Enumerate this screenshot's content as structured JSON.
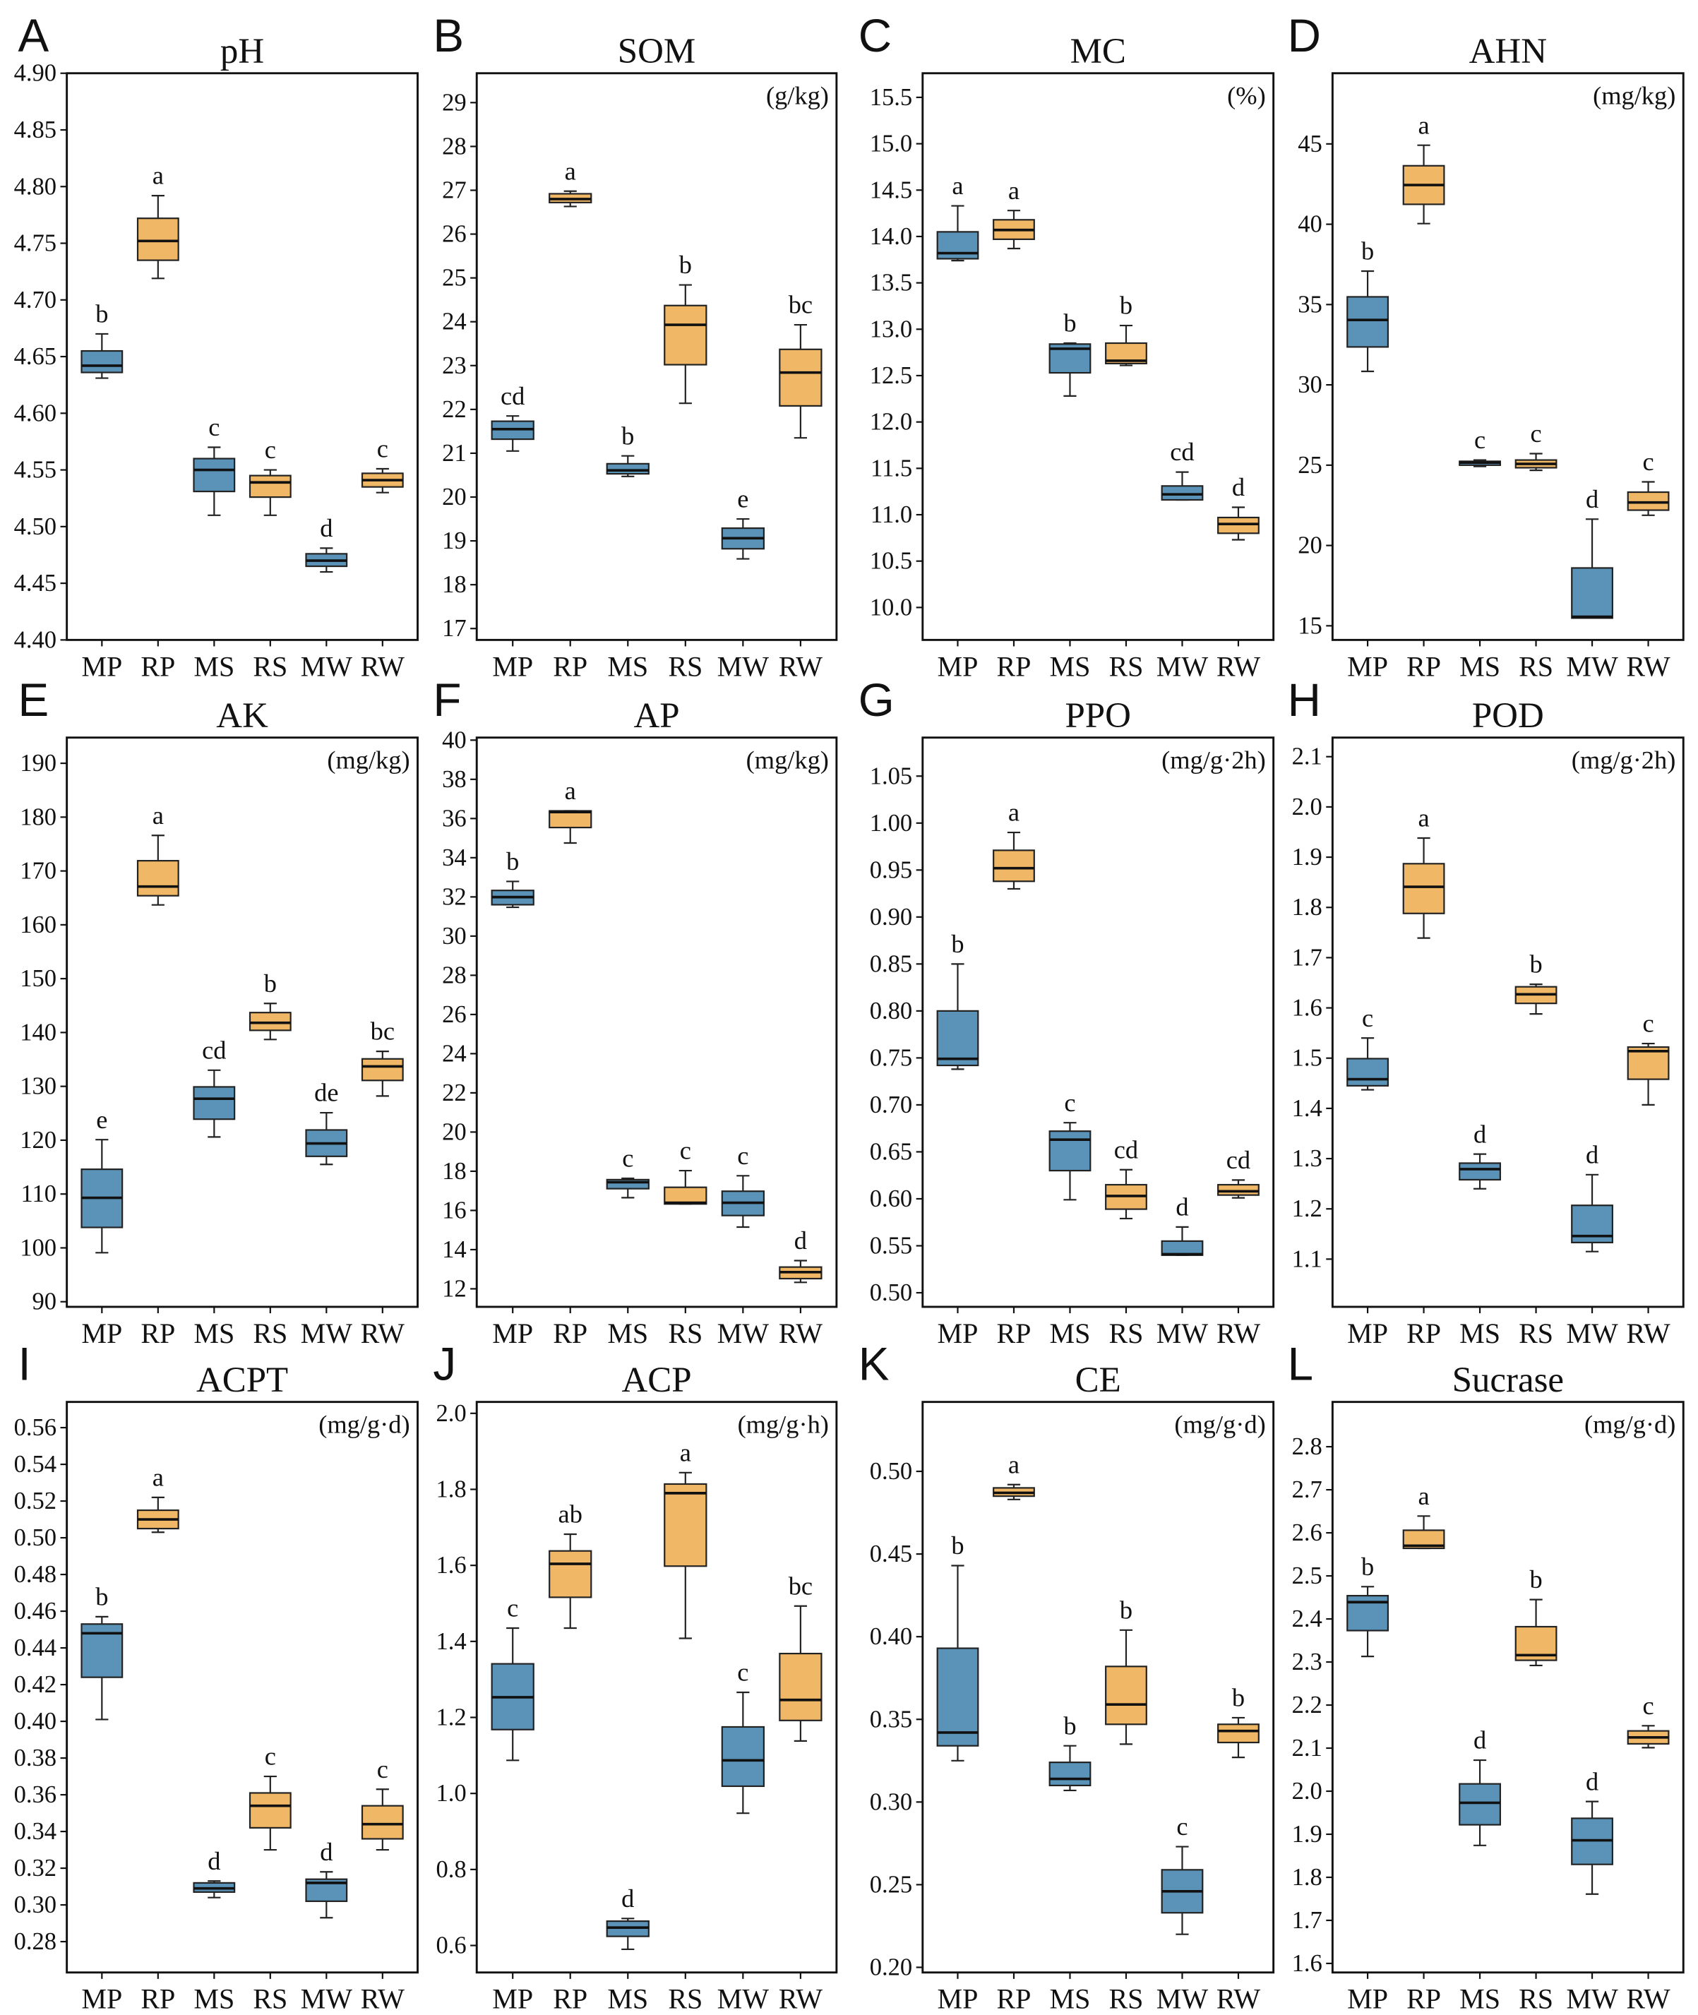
{
  "chart_data": [
    {
      "panel": "A",
      "type": "box",
      "title": "pH",
      "ylim": [
        4.4,
        4.9
      ],
      "yticks": [
        "4.40",
        "4.45",
        "4.50",
        "4.55",
        "4.60",
        "4.65",
        "4.70",
        "4.75",
        "4.80",
        "4.85",
        "4.90"
      ],
      "categories": [
        "MP",
        "RP",
        "MS",
        "RS",
        "MW",
        "RW"
      ],
      "series": [
        {
          "min": 4.631,
          "q1": 4.636,
          "median": 4.642,
          "q3": 4.655,
          "max": 4.67,
          "sig": "b",
          "color": "#5a93b7"
        },
        {
          "min": 4.719,
          "q1": 4.735,
          "median": 4.752,
          "q3": 4.772,
          "max": 4.792,
          "sig": "a",
          "color": "#f0b766"
        },
        {
          "min": 4.51,
          "q1": 4.531,
          "median": 4.55,
          "q3": 4.56,
          "max": 4.57,
          "sig": "c",
          "color": "#5a93b7"
        },
        {
          "min": 4.51,
          "q1": 4.526,
          "median": 4.539,
          "q3": 4.545,
          "max": 4.55,
          "sig": "c",
          "color": "#f0b766"
        },
        {
          "min": 4.46,
          "q1": 4.465,
          "median": 4.47,
          "q3": 4.476,
          "max": 4.481,
          "sig": "d",
          "color": "#5a93b7"
        },
        {
          "min": 4.53,
          "q1": 4.535,
          "median": 4.541,
          "q3": 4.547,
          "max": 4.551,
          "sig": "c",
          "color": "#f0b766"
        }
      ]
    },
    {
      "panel": "B",
      "type": "box",
      "title": "SOM",
      "unit": "(g/kg)",
      "ylim": [
        16.74,
        29.67
      ],
      "yticks": [
        "17",
        "18",
        "19",
        "20",
        "21",
        "22",
        "23",
        "24",
        "25",
        "26",
        "27",
        "28",
        "29"
      ],
      "categories": [
        "MP",
        "RP",
        "MS",
        "RS",
        "MW",
        "RW"
      ],
      "series": [
        {
          "min": 21.05,
          "q1": 21.32,
          "median": 21.55,
          "q3": 21.73,
          "max": 21.85,
          "sig": "cd",
          "color": "#5a93b7"
        },
        {
          "min": 26.63,
          "q1": 26.72,
          "median": 26.8,
          "q3": 26.92,
          "max": 26.98,
          "sig": "a",
          "color": "#f0b766"
        },
        {
          "min": 20.47,
          "q1": 20.53,
          "median": 20.61,
          "q3": 20.76,
          "max": 20.94,
          "sig": "b",
          "color": "#5a93b7"
        },
        {
          "min": 22.14,
          "q1": 23.02,
          "median": 23.93,
          "q3": 24.37,
          "max": 24.84,
          "sig": "b",
          "color": "#f0b766"
        },
        {
          "min": 18.59,
          "q1": 18.82,
          "median": 19.06,
          "q3": 19.29,
          "max": 19.5,
          "sig": "e",
          "color": "#5a93b7"
        },
        {
          "min": 21.35,
          "q1": 22.08,
          "median": 22.84,
          "q3": 23.37,
          "max": 23.93,
          "sig": "bc",
          "color": "#f0b766"
        }
      ]
    },
    {
      "panel": "C",
      "type": "box",
      "title": "MC",
      "unit": "(%)",
      "ylim": [
        9.65,
        15.76
      ],
      "yticks": [
        "10.0",
        "10.5",
        "11.0",
        "11.5",
        "12.0",
        "12.5",
        "13.0",
        "13.5",
        "14.0",
        "14.5",
        "15.0",
        "15.5"
      ],
      "categories": [
        "MP",
        "RP",
        "MS",
        "RS",
        "MW",
        "RW"
      ],
      "series": [
        {
          "min": 13.74,
          "q1": 13.76,
          "median": 13.82,
          "q3": 14.05,
          "max": 14.33,
          "sig": "a",
          "color": "#5a93b7"
        },
        {
          "min": 13.87,
          "q1": 13.97,
          "median": 14.07,
          "q3": 14.18,
          "max": 14.28,
          "sig": "a",
          "color": "#f0b766"
        },
        {
          "min": 12.28,
          "q1": 12.53,
          "median": 12.79,
          "q3": 12.84,
          "max": 12.85,
          "sig": "b",
          "color": "#5a93b7"
        },
        {
          "min": 12.61,
          "q1": 12.63,
          "median": 12.66,
          "q3": 12.85,
          "max": 13.04,
          "sig": "b",
          "color": "#f0b766"
        },
        {
          "min": 11.16,
          "q1": 11.16,
          "median": 11.22,
          "q3": 11.31,
          "max": 11.46,
          "sig": "cd",
          "color": "#5a93b7"
        },
        {
          "min": 10.73,
          "q1": 10.8,
          "median": 10.9,
          "q3": 10.97,
          "max": 11.08,
          "sig": "d",
          "color": "#f0b766"
        }
      ]
    },
    {
      "panel": "D",
      "type": "box",
      "title": "AHN",
      "unit": "(mg/kg)",
      "ylim": [
        14.12,
        49.4
      ],
      "yticks": [
        "15",
        "20",
        "25",
        "30",
        "35",
        "40",
        "45"
      ],
      "categories": [
        "MP",
        "RP",
        "MS",
        "RS",
        "MW",
        "RW"
      ],
      "series": [
        {
          "min": 30.84,
          "q1": 32.36,
          "median": 34.04,
          "q3": 35.48,
          "max": 37.08,
          "sig": "b",
          "color": "#5a93b7"
        },
        {
          "min": 40.04,
          "q1": 41.24,
          "median": 42.44,
          "q3": 43.64,
          "max": 44.92,
          "sig": "a",
          "color": "#f0b766"
        },
        {
          "min": 24.92,
          "q1": 25.0,
          "median": 25.16,
          "q3": 25.24,
          "max": 25.32,
          "sig": "c",
          "color": "#5a93b7"
        },
        {
          "min": 24.68,
          "q1": 24.84,
          "median": 25.08,
          "q3": 25.32,
          "max": 25.72,
          "sig": "c",
          "color": "#f0b766"
        },
        {
          "min": 15.48,
          "q1": 15.48,
          "median": 15.56,
          "q3": 18.6,
          "max": 21.64,
          "sig": "d",
          "color": "#5a93b7"
        },
        {
          "min": 21.88,
          "q1": 22.2,
          "median": 22.68,
          "q3": 23.32,
          "max": 23.96,
          "sig": "c",
          "color": "#f0b766"
        }
      ]
    },
    {
      "panel": "E",
      "type": "box",
      "title": "AK",
      "unit": "(mg/kg)",
      "ylim": [
        89.05,
        194.77
      ],
      "yticks": [
        "90",
        "100",
        "110",
        "120",
        "130",
        "140",
        "150",
        "160",
        "170",
        "180",
        "190"
      ],
      "categories": [
        "MP",
        "RP",
        "MS",
        "RS",
        "MW",
        "RW"
      ],
      "series": [
        {
          "min": 99.1,
          "q1": 103.8,
          "median": 109.3,
          "q3": 114.6,
          "max": 120.1,
          "sig": "e",
          "color": "#5a93b7"
        },
        {
          "min": 163.7,
          "q1": 165.4,
          "median": 167.1,
          "q3": 171.9,
          "max": 176.6,
          "sig": "a",
          "color": "#f0b766"
        },
        {
          "min": 120.6,
          "q1": 123.9,
          "median": 127.7,
          "q3": 129.9,
          "max": 133.0,
          "sig": "cd",
          "color": "#5a93b7"
        },
        {
          "min": 138.7,
          "q1": 140.4,
          "median": 141.8,
          "q3": 143.7,
          "max": 145.4,
          "sig": "b",
          "color": "#f0b766"
        },
        {
          "min": 115.5,
          "q1": 117.0,
          "median": 119.4,
          "q3": 121.9,
          "max": 125.1,
          "sig": "de",
          "color": "#5a93b7"
        },
        {
          "min": 128.2,
          "q1": 131.1,
          "median": 133.7,
          "q3": 135.1,
          "max": 136.5,
          "sig": "bc",
          "color": "#f0b766"
        }
      ]
    },
    {
      "panel": "F",
      "type": "box",
      "title": "AP",
      "unit": "(mg/kg)",
      "ylim": [
        11.08,
        40.13
      ],
      "yticks": [
        "12",
        "14",
        "16",
        "18",
        "20",
        "22",
        "24",
        "26",
        "28",
        "30",
        "32",
        "34",
        "36",
        "38",
        "40"
      ],
      "categories": [
        "MP",
        "RP",
        "MS",
        "RS",
        "MW",
        "RW"
      ],
      "series": [
        {
          "min": 31.47,
          "q1": 31.6,
          "median": 31.99,
          "q3": 32.33,
          "max": 32.79,
          "sig": "b",
          "color": "#5a93b7"
        },
        {
          "min": 34.75,
          "q1": 35.54,
          "median": 36.33,
          "q3": 36.39,
          "max": 36.39,
          "sig": "a",
          "color": "#f0b766"
        },
        {
          "min": 16.65,
          "q1": 17.11,
          "median": 17.44,
          "q3": 17.57,
          "max": 17.64,
          "sig": "c",
          "color": "#5a93b7"
        },
        {
          "min": 16.33,
          "q1": 16.33,
          "median": 16.39,
          "q3": 17.18,
          "max": 18.03,
          "sig": "c",
          "color": "#f0b766"
        },
        {
          "min": 15.15,
          "q1": 15.74,
          "median": 16.39,
          "q3": 16.98,
          "max": 17.77,
          "sig": "c",
          "color": "#5a93b7"
        },
        {
          "min": 12.33,
          "q1": 12.52,
          "median": 12.85,
          "q3": 13.11,
          "max": 13.44,
          "sig": "d",
          "color": "#f0b766"
        }
      ]
    },
    {
      "panel": "G",
      "type": "box",
      "title": "PPO",
      "unit": "(mg/g·2h)",
      "ylim": [
        0.485,
        1.091
      ],
      "yticks": [
        "0.50",
        "0.55",
        "0.60",
        "0.65",
        "0.70",
        "0.75",
        "0.80",
        "0.85",
        "0.90",
        "0.95",
        "1.00",
        "1.05"
      ],
      "categories": [
        "MP",
        "RP",
        "MS",
        "RS",
        "MW",
        "RW"
      ],
      "series": [
        {
          "min": 0.738,
          "q1": 0.742,
          "median": 0.749,
          "q3": 0.8,
          "max": 0.85,
          "sig": "b",
          "color": "#5a93b7"
        },
        {
          "min": 0.93,
          "q1": 0.938,
          "median": 0.952,
          "q3": 0.971,
          "max": 0.99,
          "sig": "a",
          "color": "#f0b766"
        },
        {
          "min": 0.599,
          "q1": 0.63,
          "median": 0.663,
          "q3": 0.672,
          "max": 0.681,
          "sig": "c",
          "color": "#5a93b7"
        },
        {
          "min": 0.579,
          "q1": 0.589,
          "median": 0.603,
          "q3": 0.615,
          "max": 0.631,
          "sig": "cd",
          "color": "#f0b766"
        },
        {
          "min": 0.54,
          "q1": 0.54,
          "median": 0.541,
          "q3": 0.555,
          "max": 0.57,
          "sig": "d",
          "color": "#5a93b7"
        },
        {
          "min": 0.601,
          "q1": 0.604,
          "median": 0.608,
          "q3": 0.615,
          "max": 0.62,
          "sig": "cd",
          "color": "#f0b766"
        }
      ]
    },
    {
      "panel": "H",
      "type": "box",
      "title": "POD",
      "unit": "(mg/g·2h)",
      "ylim": [
        1.005,
        2.138
      ],
      "yticks": [
        "1.1",
        "1.2",
        "1.3",
        "1.4",
        "1.5",
        "1.6",
        "1.7",
        "1.8",
        "1.9",
        "2.0",
        "2.1"
      ],
      "categories": [
        "MP",
        "RP",
        "MS",
        "RS",
        "MW",
        "RW"
      ],
      "series": [
        {
          "min": 1.437,
          "q1": 1.445,
          "median": 1.458,
          "q3": 1.499,
          "max": 1.54,
          "sig": "c",
          "color": "#5a93b7"
        },
        {
          "min": 1.739,
          "q1": 1.788,
          "median": 1.841,
          "q3": 1.887,
          "max": 1.938,
          "sig": "a",
          "color": "#f0b766"
        },
        {
          "min": 1.24,
          "q1": 1.258,
          "median": 1.279,
          "q3": 1.291,
          "max": 1.309,
          "sig": "d",
          "color": "#5a93b7"
        },
        {
          "min": 1.588,
          "q1": 1.609,
          "median": 1.627,
          "q3": 1.642,
          "max": 1.647,
          "sig": "b",
          "color": "#f0b766"
        },
        {
          "min": 1.115,
          "q1": 1.133,
          "median": 1.146,
          "q3": 1.207,
          "max": 1.268,
          "sig": "d",
          "color": "#5a93b7"
        },
        {
          "min": 1.407,
          "q1": 1.458,
          "median": 1.514,
          "q3": 1.522,
          "max": 1.529,
          "sig": "c",
          "color": "#f0b766"
        }
      ]
    },
    {
      "panel": "I",
      "type": "box",
      "title": "ACPT",
      "unit": "(mg/g·d)",
      "ylim": [
        0.2632,
        0.574
      ],
      "yticks": [
        "0.28",
        "0.30",
        "0.32",
        "0.34",
        "0.36",
        "0.38",
        "0.40",
        "0.42",
        "0.44",
        "0.46",
        "0.48",
        "0.50",
        "0.52",
        "0.54",
        "0.56"
      ],
      "categories": [
        "MP",
        "RP",
        "MS",
        "RS",
        "MW",
        "RW"
      ],
      "series": [
        {
          "min": 0.401,
          "q1": 0.424,
          "median": 0.448,
          "q3": 0.453,
          "max": 0.457,
          "sig": "b",
          "color": "#5a93b7"
        },
        {
          "min": 0.503,
          "q1": 0.505,
          "median": 0.51,
          "q3": 0.515,
          "max": 0.522,
          "sig": "a",
          "color": "#f0b766"
        },
        {
          "min": 0.304,
          "q1": 0.307,
          "median": 0.309,
          "q3": 0.312,
          "max": 0.313,
          "sig": "d",
          "color": "#5a93b7"
        },
        {
          "min": 0.33,
          "q1": 0.342,
          "median": 0.354,
          "q3": 0.361,
          "max": 0.37,
          "sig": "c",
          "color": "#f0b766"
        },
        {
          "min": 0.293,
          "q1": 0.302,
          "median": 0.312,
          "q3": 0.314,
          "max": 0.318,
          "sig": "d",
          "color": "#5a93b7"
        },
        {
          "min": 0.33,
          "q1": 0.336,
          "median": 0.344,
          "q3": 0.354,
          "max": 0.363,
          "sig": "c",
          "color": "#f0b766"
        }
      ]
    },
    {
      "panel": "J",
      "type": "box",
      "title": "ACP",
      "unit": "(mg/g·h)",
      "ylim": [
        0.529,
        2.03
      ],
      "yticks": [
        "0.6",
        "0.8",
        "1.0",
        "1.2",
        "1.4",
        "1.6",
        "1.8",
        "2.0"
      ],
      "categories": [
        "MP",
        "RP",
        "MS",
        "RS",
        "MW",
        "RW"
      ],
      "series": [
        {
          "min": 1.087,
          "q1": 1.168,
          "median": 1.253,
          "q3": 1.341,
          "max": 1.435,
          "sig": "c",
          "color": "#5a93b7"
        },
        {
          "min": 1.435,
          "q1": 1.516,
          "median": 1.604,
          "q3": 1.638,
          "max": 1.682,
          "sig": "ab",
          "color": "#f0b766"
        },
        {
          "min": 0.59,
          "q1": 0.624,
          "median": 0.647,
          "q3": 0.664,
          "max": 0.671,
          "sig": "d",
          "color": "#5a93b7"
        },
        {
          "min": 1.408,
          "q1": 1.598,
          "median": 1.79,
          "q3": 1.814,
          "max": 1.844,
          "sig": "a",
          "color": "#f0b766"
        },
        {
          "min": 0.948,
          "q1": 1.019,
          "median": 1.087,
          "q3": 1.175,
          "max": 1.266,
          "sig": "c",
          "color": "#5a93b7"
        },
        {
          "min": 1.138,
          "q1": 1.192,
          "median": 1.246,
          "q3": 1.368,
          "max": 1.493,
          "sig": "bc",
          "color": "#f0b766"
        }
      ]
    },
    {
      "panel": "K",
      "type": "box",
      "title": "CE",
      "unit": "(mg/g·d)",
      "ylim": [
        0.1969,
        0.542
      ],
      "yticks": [
        "0.20",
        "0.25",
        "0.30",
        "0.35",
        "0.40",
        "0.45",
        "0.50"
      ],
      "categories": [
        "MP",
        "RP",
        "MS",
        "RS",
        "MW",
        "RW"
      ],
      "series": [
        {
          "min": 0.325,
          "q1": 0.334,
          "median": 0.342,
          "q3": 0.393,
          "max": 0.443,
          "sig": "b",
          "color": "#5a93b7"
        },
        {
          "min": 0.483,
          "q1": 0.485,
          "median": 0.487,
          "q3": 0.49,
          "max": 0.492,
          "sig": "a",
          "color": "#f0b766"
        },
        {
          "min": 0.307,
          "q1": 0.31,
          "median": 0.314,
          "q3": 0.324,
          "max": 0.334,
          "sig": "b",
          "color": "#5a93b7"
        },
        {
          "min": 0.335,
          "q1": 0.347,
          "median": 0.359,
          "q3": 0.382,
          "max": 0.404,
          "sig": "b",
          "color": "#f0b766"
        },
        {
          "min": 0.22,
          "q1": 0.233,
          "median": 0.246,
          "q3": 0.259,
          "max": 0.273,
          "sig": "c",
          "color": "#5a93b7"
        },
        {
          "min": 0.327,
          "q1": 0.336,
          "median": 0.343,
          "q3": 0.347,
          "max": 0.351,
          "sig": "b",
          "color": "#f0b766"
        }
      ]
    },
    {
      "panel": "L",
      "type": "box",
      "title": "Sucrase",
      "unit": "(mg/g·d)",
      "ylim": [
        1.579,
        2.904
      ],
      "yticks": [
        "1.6",
        "1.7",
        "1.8",
        "1.9",
        "2.0",
        "2.1",
        "2.2",
        "2.3",
        "2.4",
        "2.5",
        "2.6",
        "2.7",
        "2.8"
      ],
      "categories": [
        "MP",
        "RP",
        "MS",
        "RS",
        "MW",
        "RW"
      ],
      "series": [
        {
          "min": 2.313,
          "q1": 2.373,
          "median": 2.439,
          "q3": 2.454,
          "max": 2.475,
          "sig": "b",
          "color": "#5a93b7"
        },
        {
          "min": 2.564,
          "q1": 2.564,
          "median": 2.57,
          "q3": 2.606,
          "max": 2.639,
          "sig": "a",
          "color": "#f0b766"
        },
        {
          "min": 1.874,
          "q1": 1.922,
          "median": 1.973,
          "q3": 2.017,
          "max": 2.072,
          "sig": "d",
          "color": "#5a93b7"
        },
        {
          "min": 2.292,
          "q1": 2.304,
          "median": 2.316,
          "q3": 2.382,
          "max": 2.445,
          "sig": "b",
          "color": "#f0b766"
        },
        {
          "min": 1.761,
          "q1": 1.83,
          "median": 1.886,
          "q3": 1.937,
          "max": 1.976,
          "sig": "d",
          "color": "#5a93b7"
        },
        {
          "min": 2.101,
          "q1": 2.11,
          "median": 2.125,
          "q3": 2.14,
          "max": 2.152,
          "sig": "c",
          "color": "#f0b766"
        }
      ]
    }
  ]
}
